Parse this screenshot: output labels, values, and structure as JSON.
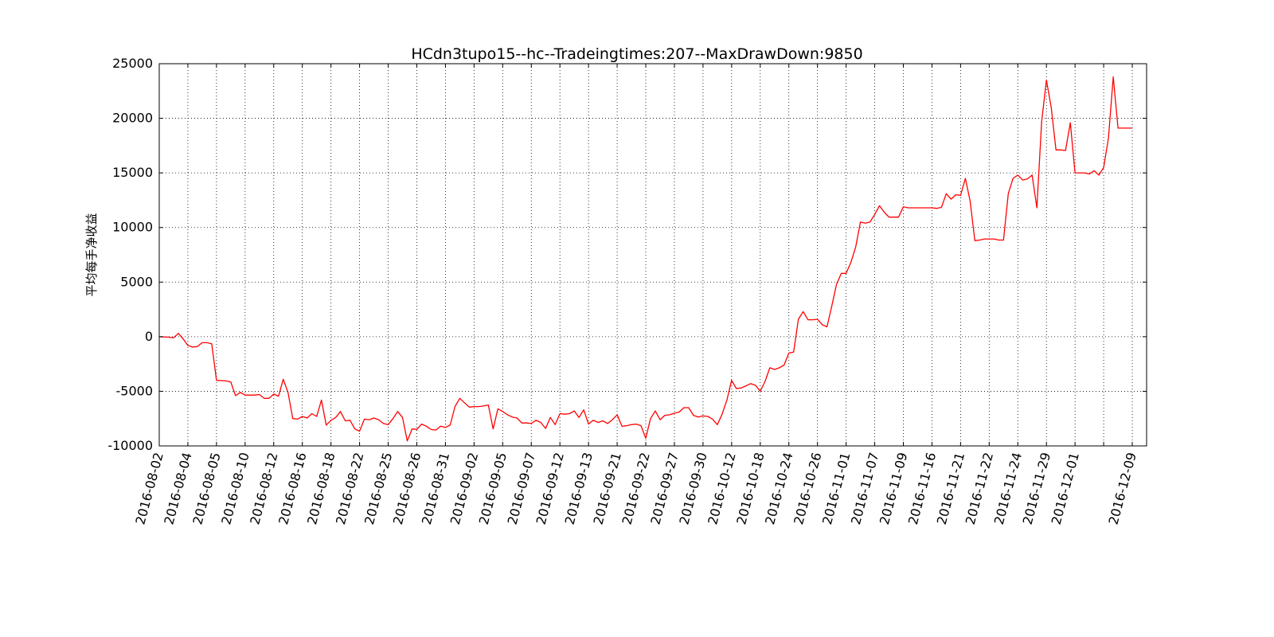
{
  "chart_data": {
    "type": "line",
    "title": "HCdn3tupo15--hc--Tradeingtimes:207--MaxDrawDown:9850",
    "xlabel": "",
    "ylabel": "平均每手净收益",
    "ylim": [
      -10000,
      25000
    ],
    "yticks": [
      -10000,
      -5000,
      0,
      5000,
      10000,
      15000,
      20000,
      25000
    ],
    "xlim": [
      0,
      207
    ],
    "xtick_positions": [
      0,
      6,
      12,
      18,
      24,
      30,
      36,
      42,
      48,
      54,
      60,
      66,
      72,
      78,
      84,
      90,
      96,
      102,
      108,
      114,
      120,
      126,
      132,
      138,
      144,
      150,
      156,
      162,
      168,
      174,
      180,
      186,
      192,
      198,
      204
    ],
    "xtick_labels": [
      "2016-08-02",
      "2016-08-04",
      "2016-08-05",
      "2016-08-10",
      "2016-08-12",
      "2016-08-16",
      "2016-08-18",
      "2016-08-22",
      "2016-08-25",
      "2016-08-26",
      "2016-08-31",
      "2016-09-02",
      "2016-09-05",
      "2016-09-07",
      "2016-09-12",
      "2016-09-13",
      "2016-09-21",
      "2016-09-22",
      "2016-09-27",
      "2016-09-30",
      "2016-10-12",
      "2016-10-18",
      "2016-10-24",
      "2016-10-26",
      "2016-11-01",
      "2016-11-07",
      "2016-11-09",
      "2016-11-16",
      "2016-11-21",
      "2016-11-22",
      "2016-11-24",
      "2016-11-29",
      "2016-12-01",
      "",
      "2016-12-09"
    ],
    "grid": true,
    "line_color": "#ff0000",
    "series": [
      {
        "name": "",
        "points": [
          [
            0,
            0
          ],
          [
            2,
            -50
          ],
          [
            3,
            -100
          ],
          [
            4,
            300
          ],
          [
            5,
            -200
          ],
          [
            6,
            -800
          ],
          [
            7,
            -950
          ],
          [
            8,
            -900
          ],
          [
            9,
            -550
          ],
          [
            10,
            -550
          ],
          [
            11,
            -650
          ],
          [
            12,
            -4000
          ],
          [
            14,
            -4050
          ],
          [
            15,
            -4150
          ],
          [
            16,
            -5400
          ],
          [
            17,
            -5100
          ],
          [
            18,
            -5350
          ],
          [
            20,
            -5350
          ],
          [
            21,
            -5300
          ],
          [
            22,
            -5650
          ],
          [
            23,
            -5650
          ],
          [
            24,
            -5250
          ],
          [
            25,
            -5450
          ],
          [
            26,
            -3900
          ],
          [
            27,
            -5100
          ],
          [
            28,
            -7500
          ],
          [
            29,
            -7550
          ],
          [
            30,
            -7300
          ],
          [
            31,
            -7450
          ],
          [
            32,
            -7050
          ],
          [
            33,
            -7300
          ],
          [
            34,
            -5800
          ],
          [
            35,
            -8100
          ],
          [
            36,
            -7650
          ],
          [
            37,
            -7400
          ],
          [
            38,
            -6850
          ],
          [
            39,
            -7700
          ],
          [
            40,
            -7650
          ],
          [
            41,
            -8450
          ],
          [
            42,
            -8650
          ],
          [
            43,
            -7550
          ],
          [
            44,
            -7600
          ],
          [
            45,
            -7450
          ],
          [
            46,
            -7600
          ],
          [
            47,
            -7950
          ],
          [
            48,
            -8050
          ],
          [
            49,
            -7500
          ],
          [
            50,
            -6850
          ],
          [
            51,
            -7400
          ],
          [
            52,
            -9550
          ],
          [
            53,
            -8450
          ],
          [
            54,
            -8500
          ],
          [
            55,
            -8000
          ],
          [
            56,
            -8200
          ],
          [
            57,
            -8500
          ],
          [
            58,
            -8550
          ],
          [
            59,
            -8200
          ],
          [
            60,
            -8300
          ],
          [
            61,
            -8100
          ],
          [
            62,
            -6400
          ],
          [
            63,
            -5650
          ],
          [
            64,
            -6050
          ],
          [
            65,
            -6450
          ],
          [
            66,
            -6400
          ],
          [
            67,
            -6400
          ],
          [
            68,
            -6350
          ],
          [
            69,
            -6250
          ],
          [
            70,
            -8450
          ],
          [
            71,
            -6600
          ],
          [
            72,
            -6850
          ],
          [
            73,
            -7150
          ],
          [
            74,
            -7350
          ],
          [
            75,
            -7450
          ],
          [
            76,
            -7900
          ],
          [
            77,
            -7900
          ],
          [
            78,
            -7950
          ],
          [
            79,
            -7650
          ],
          [
            80,
            -7850
          ],
          [
            81,
            -8400
          ],
          [
            82,
            -7400
          ],
          [
            83,
            -8050
          ],
          [
            84,
            -7050
          ],
          [
            85,
            -7100
          ],
          [
            86,
            -7050
          ],
          [
            87,
            -6800
          ],
          [
            88,
            -7400
          ],
          [
            89,
            -6700
          ],
          [
            90,
            -8000
          ],
          [
            91,
            -7650
          ],
          [
            92,
            -7850
          ],
          [
            93,
            -7700
          ],
          [
            94,
            -7950
          ],
          [
            95,
            -7600
          ],
          [
            96,
            -7150
          ],
          [
            97,
            -8200
          ],
          [
            98,
            -8150
          ],
          [
            99,
            -8050
          ],
          [
            100,
            -8000
          ],
          [
            101,
            -8150
          ],
          [
            102,
            -9300
          ],
          [
            103,
            -7500
          ],
          [
            104,
            -6800
          ],
          [
            105,
            -7600
          ],
          [
            106,
            -7200
          ],
          [
            107,
            -7150
          ],
          [
            108,
            -7000
          ],
          [
            109,
            -6900
          ],
          [
            110,
            -6500
          ],
          [
            111,
            -6500
          ],
          [
            112,
            -7200
          ],
          [
            113,
            -7350
          ],
          [
            114,
            -7250
          ],
          [
            115,
            -7300
          ],
          [
            116,
            -7550
          ],
          [
            117,
            -8050
          ],
          [
            118,
            -7100
          ],
          [
            119,
            -5800
          ],
          [
            120,
            -4000
          ],
          [
            121,
            -4750
          ],
          [
            122,
            -4700
          ],
          [
            123,
            -4500
          ],
          [
            124,
            -4300
          ],
          [
            125,
            -4450
          ],
          [
            126,
            -5000
          ],
          [
            127,
            -4100
          ],
          [
            128,
            -2850
          ],
          [
            129,
            -3000
          ],
          [
            130,
            -2850
          ],
          [
            131,
            -2600
          ],
          [
            132,
            -1500
          ],
          [
            133,
            -1400
          ],
          [
            134,
            1600
          ],
          [
            135,
            2300
          ],
          [
            136,
            1550
          ],
          [
            137,
            1550
          ],
          [
            138,
            1600
          ],
          [
            139,
            1100
          ],
          [
            140,
            900
          ],
          [
            141,
            2800
          ],
          [
            142,
            4800
          ],
          [
            143,
            5800
          ],
          [
            144,
            5800
          ],
          [
            145,
            6800
          ],
          [
            146,
            8200
          ],
          [
            147,
            10500
          ],
          [
            148,
            10400
          ],
          [
            149,
            10500
          ],
          [
            150,
            11200
          ],
          [
            151,
            12000
          ],
          [
            152,
            11400
          ],
          [
            153,
            10950
          ],
          [
            154,
            10950
          ],
          [
            155,
            10950
          ],
          [
            156,
            11900
          ],
          [
            157,
            11800
          ],
          [
            158,
            11800
          ],
          [
            159,
            11800
          ],
          [
            160,
            11800
          ],
          [
            161,
            11800
          ],
          [
            162,
            11800
          ],
          [
            163,
            11750
          ],
          [
            164,
            11850
          ],
          [
            165,
            13100
          ],
          [
            166,
            12600
          ],
          [
            167,
            13000
          ],
          [
            168,
            12950
          ],
          [
            169,
            14500
          ],
          [
            170,
            12400
          ],
          [
            171,
            8800
          ],
          [
            172,
            8850
          ],
          [
            173,
            8950
          ],
          [
            174,
            8950
          ],
          [
            175,
            8950
          ],
          [
            176,
            8850
          ],
          [
            177,
            8850
          ],
          [
            178,
            13100
          ],
          [
            179,
            14500
          ],
          [
            180,
            14800
          ],
          [
            181,
            14350
          ],
          [
            182,
            14450
          ],
          [
            183,
            14800
          ],
          [
            184,
            11800
          ],
          [
            185,
            19700
          ],
          [
            186,
            23500
          ],
          [
            187,
            21000
          ],
          [
            188,
            17100
          ],
          [
            189,
            17100
          ],
          [
            190,
            17050
          ],
          [
            191,
            19600
          ],
          [
            192,
            15000
          ],
          [
            193,
            15000
          ],
          [
            194,
            15000
          ],
          [
            195,
            14900
          ],
          [
            196,
            15200
          ],
          [
            197,
            14800
          ],
          [
            198,
            15500
          ],
          [
            199,
            18200
          ],
          [
            200,
            23800
          ],
          [
            201,
            19100
          ],
          [
            202,
            19100
          ],
          [
            203,
            19100
          ],
          [
            204,
            19100
          ]
        ]
      }
    ]
  }
}
